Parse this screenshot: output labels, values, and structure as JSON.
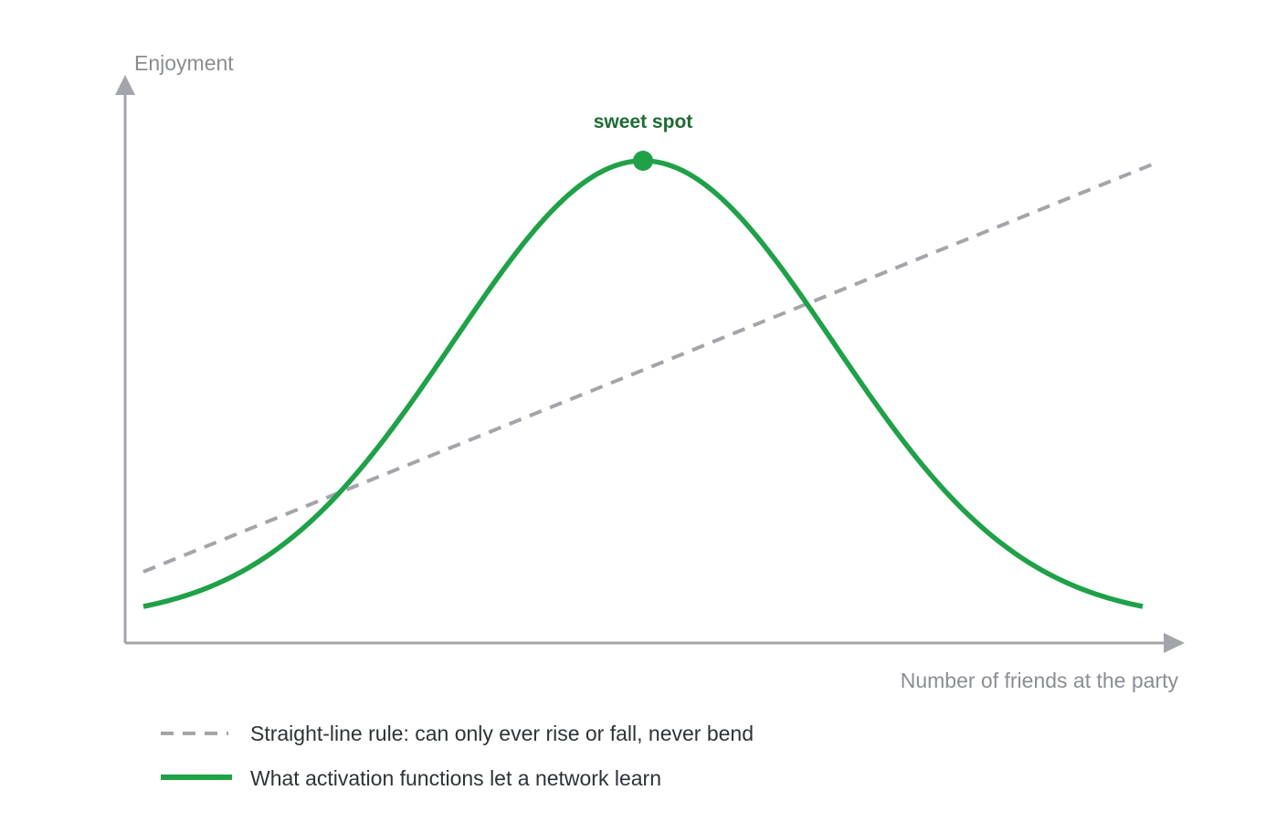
{
  "chart_data": {
    "type": "line",
    "xlabel": "Number of friends at the party",
    "ylabel": "Enjoyment",
    "xlim": [
      0,
      1
    ],
    "ylim": [
      0,
      1
    ],
    "grid": false,
    "legend_placement": "bottom-left",
    "series": [
      {
        "name": "Straight-line rule: can only ever rise or fall, never bend",
        "style": "dashed",
        "color": "#a3a5ab",
        "x": [
          0,
          1
        ],
        "y": [
          0.15,
          1.0
        ]
      },
      {
        "name": "What activation functions let a network learn",
        "style": "solid",
        "color": "#1fa148",
        "x": [
          0,
          0.05,
          0.1,
          0.15,
          0.2,
          0.25,
          0.3,
          0.35,
          0.4,
          0.45,
          0.5,
          0.55,
          0.6,
          0.65,
          0.7,
          0.75,
          0.8,
          0.85,
          0.9,
          0.95,
          1
        ],
        "y": [
          0.0,
          0.02,
          0.06,
          0.13,
          0.24,
          0.38,
          0.54,
          0.7,
          0.85,
          0.96,
          1.0,
          0.96,
          0.85,
          0.7,
          0.54,
          0.38,
          0.24,
          0.13,
          0.06,
          0.02,
          0.0
        ]
      }
    ],
    "annotations": [
      {
        "text": "sweet spot",
        "x": 0.5,
        "y": 1.0
      }
    ]
  },
  "colors": {
    "axis": "#a3a5ab",
    "curve": "#1fa148",
    "dashed": "#a3a5ab",
    "annotation": "#1f6b35"
  }
}
